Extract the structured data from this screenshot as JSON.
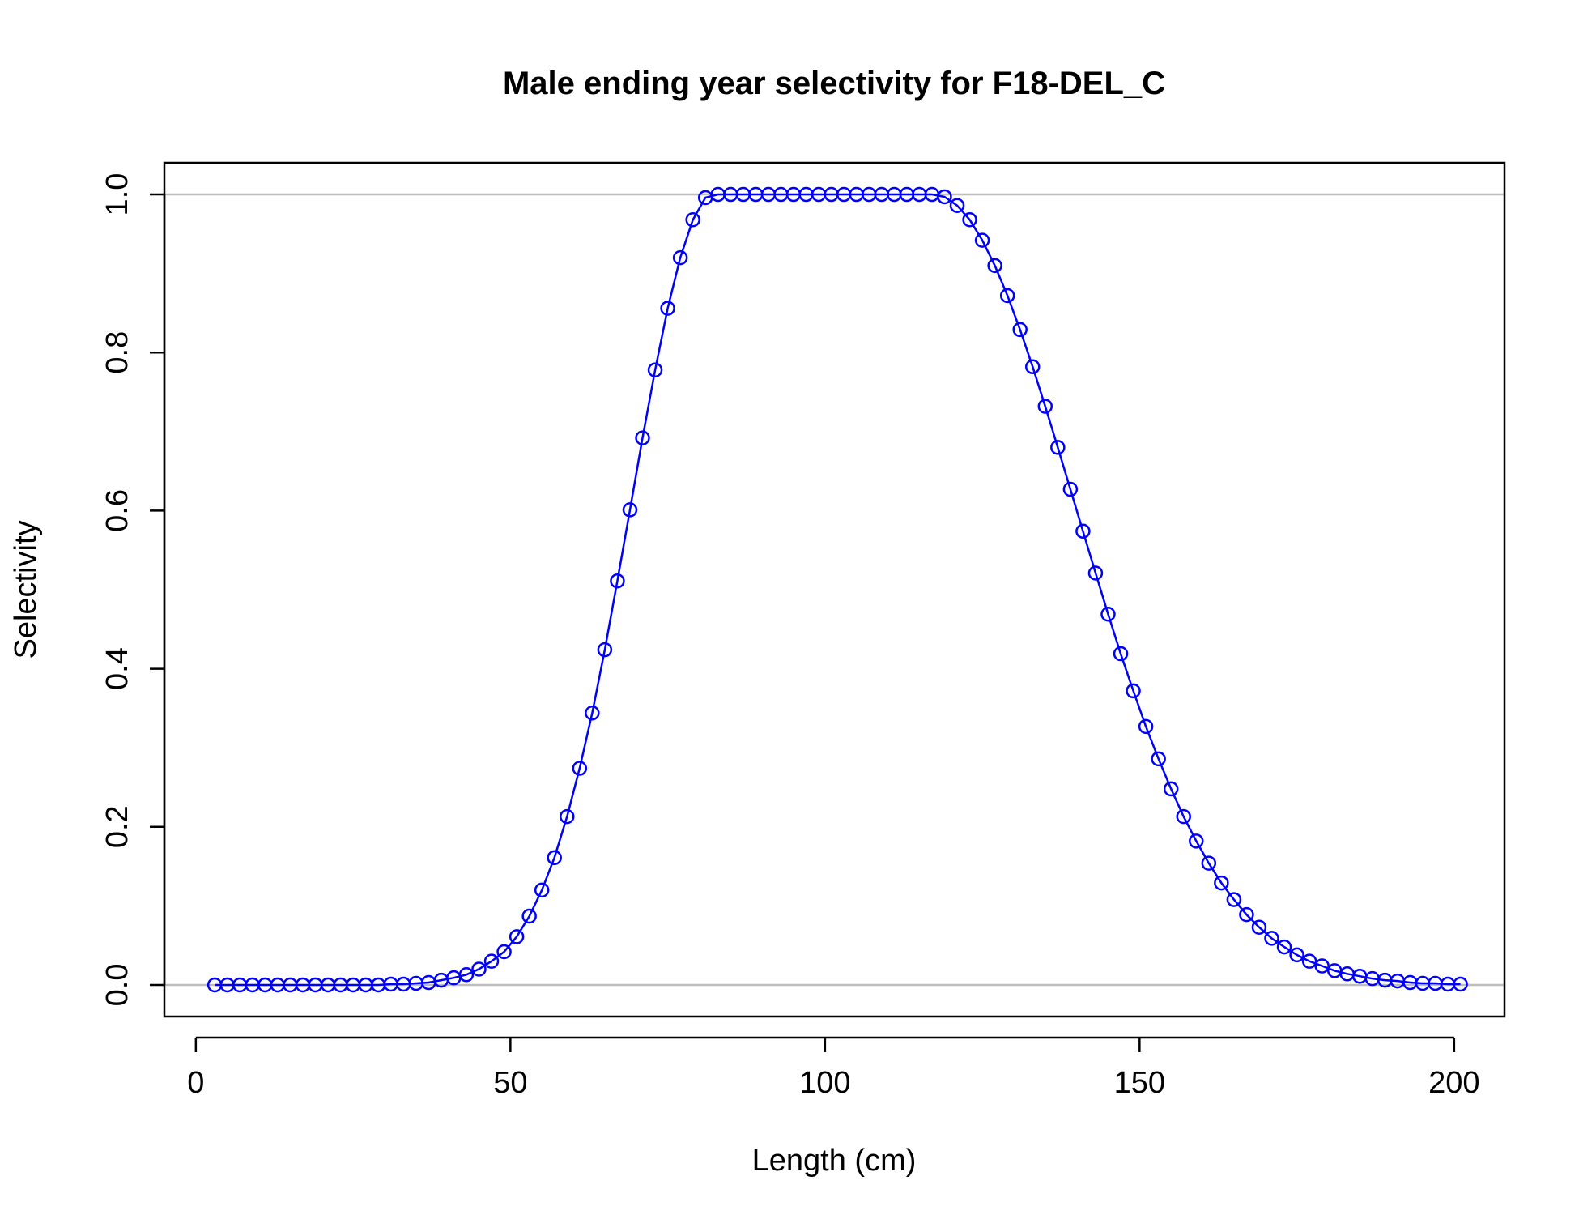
{
  "chart_data": {
    "type": "line",
    "title": "Male ending year selectivity for F18-DEL_C",
    "xlabel": "Length (cm)",
    "ylabel": "Selectivity",
    "xlim": [
      -5,
      208
    ],
    "ylim": [
      -0.04,
      1.04
    ],
    "x_ticks": [
      "0",
      "50",
      "100",
      "150",
      "200"
    ],
    "y_ticks": [
      "0.0",
      "0.2",
      "0.4",
      "0.6",
      "0.8",
      "1.0"
    ],
    "reference_lines": [
      0,
      1
    ],
    "reference_line_color": "#bebebe",
    "series_color": "#0000ff",
    "markers": "open-circle",
    "series": [
      {
        "x": [
          3,
          5,
          7,
          9,
          11,
          13,
          15,
          17,
          19,
          21,
          23,
          25,
          27,
          29,
          31,
          33,
          35,
          37,
          39,
          41,
          43,
          45,
          47,
          49,
          51,
          53,
          55,
          57,
          59,
          61,
          63,
          65,
          67,
          69,
          71,
          73,
          75,
          77,
          79,
          81,
          83,
          85,
          87,
          89,
          91,
          93,
          95,
          97,
          99,
          101,
          103,
          105,
          107,
          109,
          111,
          113,
          115,
          117,
          119,
          121,
          123,
          125,
          127,
          129,
          131,
          133,
          135,
          137,
          139,
          141,
          143,
          145,
          147,
          149,
          151,
          153,
          155,
          157,
          159,
          161,
          163,
          165,
          167,
          169,
          171,
          173,
          175,
          177,
          179,
          181,
          183,
          185,
          187,
          189,
          191,
          193,
          195,
          197,
          199,
          201
        ],
        "values": [
          0.0,
          0.0,
          0.0,
          0.0,
          0.0,
          0.0,
          0.0,
          0.0,
          0.0,
          0.0,
          0.0,
          0.0,
          0.0,
          0.0,
          0.001,
          0.001,
          0.002,
          0.003,
          0.006,
          0.009,
          0.013,
          0.02,
          0.03,
          0.042,
          0.061,
          0.087,
          0.12,
          0.161,
          0.213,
          0.274,
          0.344,
          0.424,
          0.511,
          0.601,
          0.692,
          0.778,
          0.856,
          0.92,
          0.968,
          0.996,
          1.0,
          1.0,
          1.0,
          1.0,
          1.0,
          1.0,
          1.0,
          1.0,
          1.0,
          1.0,
          1.0,
          1.0,
          1.0,
          1.0,
          1.0,
          1.0,
          1.0,
          1.0,
          0.997,
          0.986,
          0.968,
          0.942,
          0.91,
          0.872,
          0.829,
          0.782,
          0.732,
          0.68,
          0.627,
          0.574,
          0.521,
          0.469,
          0.419,
          0.372,
          0.327,
          0.286,
          0.248,
          0.213,
          0.182,
          0.154,
          0.129,
          0.108,
          0.089,
          0.073,
          0.059,
          0.048,
          0.038,
          0.03,
          0.024,
          0.018,
          0.014,
          0.011,
          0.008,
          0.006,
          0.005,
          0.003,
          0.002,
          0.002,
          0.001,
          0.001
        ]
      }
    ]
  }
}
